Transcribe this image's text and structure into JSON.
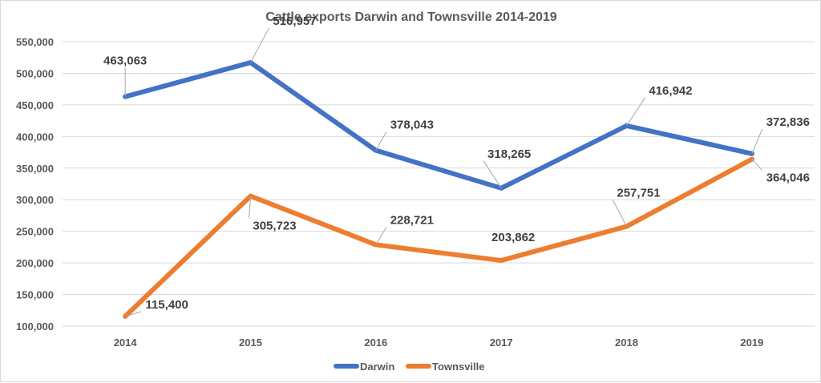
{
  "chart_data": {
    "type": "line",
    "title": "Cattle exports Darwin and Townsville 2014-2019",
    "xlabel": "",
    "ylabel": "",
    "categories": [
      "2014",
      "2015",
      "2016",
      "2017",
      "2018",
      "2019"
    ],
    "ylim": [
      100000,
      550000
    ],
    "yticks": [
      "100,000",
      "150,000",
      "200,000",
      "250,000",
      "300,000",
      "350,000",
      "400,000",
      "450,000",
      "500,000",
      "550,000"
    ],
    "grid": true,
    "legend_position": "bottom",
    "series": [
      {
        "name": "Darwin",
        "color": "#4472c4",
        "values": [
          463063,
          516957,
          378043,
          318265,
          416942,
          372836
        ],
        "labels": [
          "463,063",
          "516,957",
          "378,043",
          "318,265",
          "416,942",
          "372,836"
        ]
      },
      {
        "name": "Townsville",
        "color": "#ed7d31",
        "values": [
          115400,
          305723,
          228721,
          203862,
          257751,
          364046
        ],
        "labels": [
          "115,400",
          "305,723",
          "228,721",
          "203,862",
          "257,751",
          "364,046"
        ]
      }
    ]
  }
}
